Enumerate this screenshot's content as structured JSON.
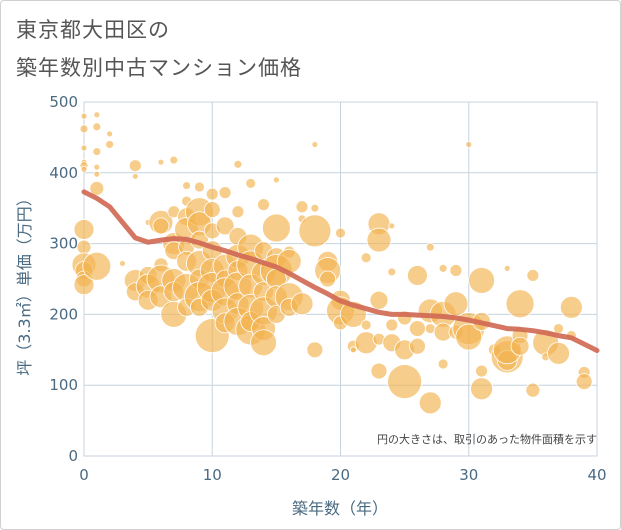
{
  "title_line1": "東京都大田区の",
  "title_line2": "築年数別中古マンション価格",
  "note": "円の大きさは、取引のあった物件面積を示す",
  "colors": {
    "bubble": "#f3b24f",
    "trend": "#d06a55",
    "grid": "#c7d3dc",
    "axis_text": "#4a6a82"
  },
  "chart_data": {
    "type": "scatter",
    "xlabel": "築年数（年）",
    "ylabel": "坪（3.3㎡）単価（万円）",
    "xlim": [
      0,
      40
    ],
    "ylim": [
      0,
      500
    ],
    "xticks": [
      "0",
      "10",
      "20",
      "30",
      "40"
    ],
    "yticks": [
      "0",
      "100",
      "200",
      "300",
      "400",
      "500"
    ],
    "trend": {
      "x": [
        0,
        1,
        2,
        3,
        4,
        5,
        6,
        7,
        8,
        9,
        10,
        11,
        12,
        13,
        14,
        15,
        16,
        17,
        18,
        19,
        20,
        21,
        22,
        23,
        24,
        25,
        26,
        27,
        28,
        29,
        30,
        31,
        32,
        33,
        34,
        35,
        36,
        37,
        38,
        39,
        40
      ],
      "y": [
        373,
        364,
        352,
        330,
        308,
        302,
        305,
        307,
        306,
        301,
        295,
        290,
        284,
        279,
        273,
        267,
        258,
        248,
        238,
        229,
        219,
        213,
        208,
        203,
        200,
        200,
        199,
        198,
        197,
        195,
        192,
        188,
        184,
        180,
        179,
        177,
        174,
        170,
        167,
        158,
        149
      ]
    },
    "points": [
      [
        0,
        480,
        3
      ],
      [
        0,
        462,
        4
      ],
      [
        0,
        435,
        3
      ],
      [
        0,
        415,
        3
      ],
      [
        0,
        410,
        4
      ],
      [
        0,
        405,
        3
      ],
      [
        0,
        320,
        10
      ],
      [
        0,
        295,
        7
      ],
      [
        0,
        270,
        12
      ],
      [
        0,
        262,
        9
      ],
      [
        0,
        250,
        8
      ],
      [
        0,
        242,
        10
      ],
      [
        1,
        482,
        3
      ],
      [
        1,
        465,
        4
      ],
      [
        1,
        430,
        4
      ],
      [
        1,
        408,
        3
      ],
      [
        1,
        398,
        3
      ],
      [
        1,
        378,
        7
      ],
      [
        1,
        268,
        14
      ],
      [
        2,
        455,
        3
      ],
      [
        2,
        440,
        4
      ],
      [
        3,
        272,
        3
      ],
      [
        4,
        410,
        6
      ],
      [
        4,
        395,
        3
      ],
      [
        4,
        248,
        11
      ],
      [
        4,
        232,
        9
      ],
      [
        5,
        330,
        3
      ],
      [
        5,
        255,
        9
      ],
      [
        5,
        240,
        12
      ],
      [
        5,
        220,
        10
      ],
      [
        6,
        415,
        3
      ],
      [
        6,
        330,
        12
      ],
      [
        6,
        325,
        8
      ],
      [
        6,
        270,
        7
      ],
      [
        6,
        250,
        14
      ],
      [
        6,
        225,
        11
      ],
      [
        7,
        418,
        4
      ],
      [
        7,
        345,
        6
      ],
      [
        7,
        300,
        11
      ],
      [
        7,
        290,
        9
      ],
      [
        7,
        248,
        12
      ],
      [
        7,
        232,
        10
      ],
      [
        7,
        200,
        13
      ],
      [
        8,
        382,
        4
      ],
      [
        8,
        360,
        5
      ],
      [
        8,
        338,
        9
      ],
      [
        8,
        320,
        12
      ],
      [
        8,
        295,
        8
      ],
      [
        8,
        275,
        10
      ],
      [
        8,
        238,
        14
      ],
      [
        8,
        210,
        9
      ],
      [
        9,
        380,
        5
      ],
      [
        9,
        345,
        14
      ],
      [
        9,
        328,
        12
      ],
      [
        9,
        305,
        9
      ],
      [
        9,
        272,
        13
      ],
      [
        9,
        250,
        10
      ],
      [
        9,
        225,
        15
      ],
      [
        9,
        210,
        9
      ],
      [
        10,
        370,
        6
      ],
      [
        10,
        348,
        8
      ],
      [
        10,
        318,
        8
      ],
      [
        10,
        290,
        10
      ],
      [
        10,
        262,
        12
      ],
      [
        10,
        238,
        15
      ],
      [
        10,
        220,
        11
      ],
      [
        10,
        170,
        17
      ],
      [
        11,
        372,
        6
      ],
      [
        11,
        325,
        9
      ],
      [
        11,
        268,
        12
      ],
      [
        11,
        250,
        9
      ],
      [
        11,
        232,
        14
      ],
      [
        11,
        205,
        13
      ],
      [
        11,
        188,
        10
      ],
      [
        12,
        412,
        4
      ],
      [
        12,
        345,
        6
      ],
      [
        12,
        310,
        9
      ],
      [
        12,
        282,
        12
      ],
      [
        12,
        262,
        10
      ],
      [
        12,
        240,
        14
      ],
      [
        12,
        215,
        11
      ],
      [
        12,
        190,
        14
      ],
      [
        13,
        385,
        5
      ],
      [
        13,
        295,
        13
      ],
      [
        13,
        270,
        14
      ],
      [
        13,
        240,
        12
      ],
      [
        13,
        210,
        13
      ],
      [
        13,
        178,
        15
      ],
      [
        13,
        190,
        10
      ],
      [
        14,
        355,
        6
      ],
      [
        14,
        290,
        9
      ],
      [
        14,
        258,
        12
      ],
      [
        14,
        232,
        10
      ],
      [
        14,
        205,
        14
      ],
      [
        14,
        180,
        12
      ],
      [
        14,
        160,
        13
      ],
      [
        15,
        390,
        3
      ],
      [
        15,
        322,
        14
      ],
      [
        15,
        280,
        10
      ],
      [
        15,
        262,
        16
      ],
      [
        15,
        250,
        10
      ],
      [
        15,
        225,
        11
      ],
      [
        15,
        200,
        9
      ],
      [
        16,
        288,
        6
      ],
      [
        16,
        275,
        12
      ],
      [
        16,
        225,
        14
      ],
      [
        16,
        210,
        9
      ],
      [
        17,
        352,
        6
      ],
      [
        17,
        335,
        4
      ],
      [
        17,
        215,
        11
      ],
      [
        18,
        440,
        3
      ],
      [
        18,
        350,
        4
      ],
      [
        18,
        318,
        16
      ],
      [
        18,
        150,
        8
      ],
      [
        19,
        275,
        10
      ],
      [
        19,
        262,
        13
      ],
      [
        19,
        250,
        8
      ],
      [
        20,
        315,
        5
      ],
      [
        20,
        220,
        10
      ],
      [
        20,
        205,
        14
      ],
      [
        20,
        188,
        7
      ],
      [
        21,
        200,
        13
      ],
      [
        21,
        155,
        6
      ],
      [
        21,
        150,
        3
      ],
      [
        22,
        280,
        5
      ],
      [
        22,
        185,
        5
      ],
      [
        22,
        160,
        11
      ],
      [
        23,
        328,
        11
      ],
      [
        23,
        305,
        12
      ],
      [
        23,
        220,
        9
      ],
      [
        23,
        165,
        6
      ],
      [
        23,
        120,
        8
      ],
      [
        24,
        325,
        3
      ],
      [
        24,
        260,
        4
      ],
      [
        24,
        185,
        6
      ],
      [
        24,
        160,
        9
      ],
      [
        25,
        195,
        7
      ],
      [
        25,
        150,
        10
      ],
      [
        25,
        105,
        17
      ],
      [
        26,
        255,
        10
      ],
      [
        26,
        180,
        8
      ],
      [
        26,
        155,
        8
      ],
      [
        27,
        295,
        4
      ],
      [
        27,
        205,
        12
      ],
      [
        27,
        180,
        5
      ],
      [
        27,
        75,
        11
      ],
      [
        28,
        265,
        4
      ],
      [
        28,
        200,
        13
      ],
      [
        28,
        175,
        9
      ],
      [
        28,
        130,
        5
      ],
      [
        29,
        215,
        12
      ],
      [
        29,
        175,
        7
      ],
      [
        29,
        262,
        6
      ],
      [
        30,
        440,
        3
      ],
      [
        30,
        180,
        16
      ],
      [
        30,
        168,
        13
      ],
      [
        31,
        248,
        13
      ],
      [
        31,
        190,
        9
      ],
      [
        31,
        120,
        6
      ],
      [
        31,
        95,
        11
      ],
      [
        32,
        150,
        6
      ],
      [
        33,
        265,
        3
      ],
      [
        33,
        140,
        16
      ],
      [
        33,
        135,
        10
      ],
      [
        33,
        150,
        14
      ],
      [
        34,
        215,
        14
      ],
      [
        34,
        170,
        8
      ],
      [
        34,
        155,
        9
      ],
      [
        35,
        255,
        6
      ],
      [
        35,
        93,
        7
      ],
      [
        36,
        160,
        13
      ],
      [
        36,
        140,
        4
      ],
      [
        37,
        180,
        5
      ],
      [
        37,
        145,
        11
      ],
      [
        38,
        210,
        11
      ],
      [
        38,
        170,
        5
      ],
      [
        39,
        118,
        6
      ],
      [
        39,
        105,
        8
      ]
    ]
  }
}
